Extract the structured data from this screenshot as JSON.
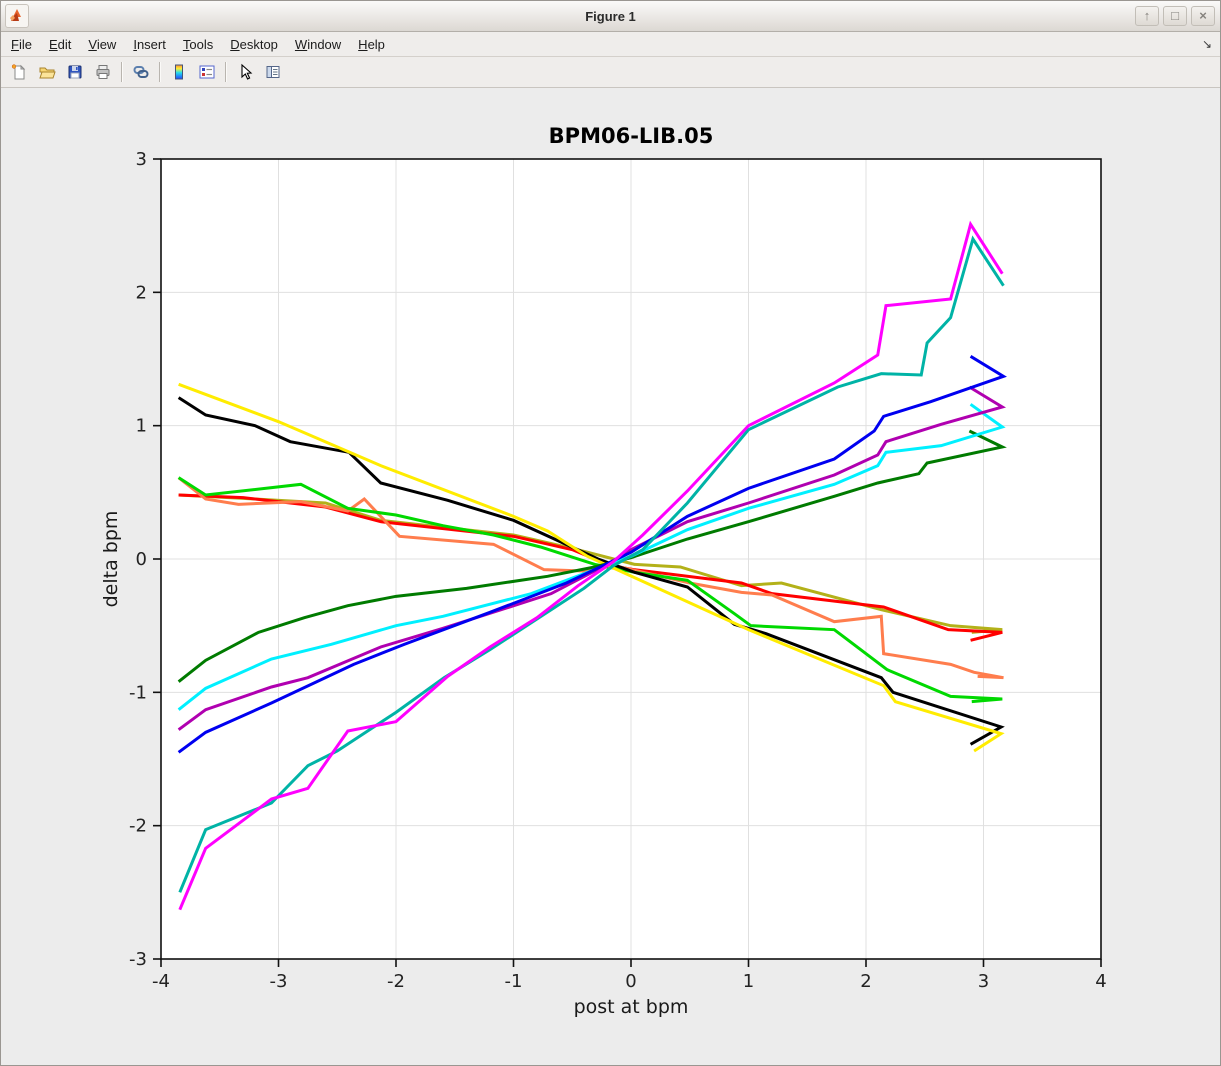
{
  "window": {
    "title": "Figure 1",
    "buttons": {
      "minimize": "↑",
      "maximize": "□",
      "close": "×"
    }
  },
  "menu": {
    "items": [
      "File",
      "Edit",
      "View",
      "Insert",
      "Tools",
      "Desktop",
      "Window",
      "Help"
    ],
    "dock_glyph": "↘"
  },
  "toolbar": {
    "buttons": [
      "new-figure",
      "open-file",
      "save-figure",
      "print-figure",
      "link-plot",
      "insert-colorbar",
      "insert-legend",
      "edit-plot",
      "plot-browser"
    ]
  },
  "chart_data": {
    "type": "line",
    "title": "BPM06-LIB.05",
    "xlabel": "post at bpm",
    "ylabel": "delta bpm",
    "xlim": [
      -4,
      4
    ],
    "ylim": [
      -3,
      3
    ],
    "xticks": [
      -4,
      -3,
      -2,
      -1,
      0,
      1,
      2,
      3,
      4
    ],
    "yticks": [
      -3,
      -2,
      -1,
      0,
      1,
      2,
      3
    ],
    "grid": true,
    "legend": "none",
    "colors": {
      "axis": "#111111",
      "grid": "#E0E0E0",
      "plot_bg": "#FFFFFF",
      "figure_bg": "#ECECEC"
    },
    "series": [
      {
        "name": "olive",
        "color": "#B3B119",
        "points": [
          [
            -3.85,
            0.48
          ],
          [
            -3.2,
            0.45
          ],
          [
            -2.6,
            0.42
          ],
          [
            -2.13,
            0.29
          ],
          [
            -1.0,
            0.18
          ],
          [
            -0.5,
            0.08
          ],
          [
            0.03,
            -0.04
          ],
          [
            0.42,
            -0.06
          ],
          [
            0.94,
            -0.2
          ],
          [
            1.28,
            -0.18
          ],
          [
            2.13,
            -0.38
          ],
          [
            2.72,
            -0.5
          ],
          [
            3.16,
            -0.53
          ],
          [
            2.9,
            -0.55
          ]
        ]
      },
      {
        "name": "red",
        "color": "#FF0000",
        "points": [
          [
            -3.85,
            0.48
          ],
          [
            -3.3,
            0.46
          ],
          [
            -2.6,
            0.39
          ],
          [
            -2.13,
            0.28
          ],
          [
            -1.0,
            0.17
          ],
          [
            -0.5,
            0.07
          ],
          [
            -0.17,
            -0.05
          ],
          [
            0.03,
            -0.08
          ],
          [
            0.94,
            -0.18
          ],
          [
            1.2,
            -0.26
          ],
          [
            2.15,
            -0.36
          ],
          [
            2.7,
            -0.53
          ],
          [
            3.16,
            -0.55
          ],
          [
            2.89,
            -0.61
          ]
        ]
      },
      {
        "name": "coral",
        "color": "#FF7D4D",
        "points": [
          [
            -3.85,
            0.61
          ],
          [
            -3.62,
            0.45
          ],
          [
            -3.34,
            0.41
          ],
          [
            -2.81,
            0.43
          ],
          [
            -2.41,
            0.36
          ],
          [
            -2.27,
            0.45
          ],
          [
            -1.97,
            0.17
          ],
          [
            -1.17,
            0.11
          ],
          [
            -0.74,
            -0.08
          ],
          [
            -0.4,
            -0.09
          ],
          [
            -0.14,
            -0.05
          ],
          [
            0.5,
            -0.18
          ],
          [
            0.94,
            -0.25
          ],
          [
            1.2,
            -0.27
          ],
          [
            1.73,
            -0.47
          ],
          [
            2.13,
            -0.43
          ],
          [
            2.15,
            -0.71
          ],
          [
            2.72,
            -0.79
          ],
          [
            2.92,
            -0.85
          ],
          [
            3.17,
            -0.89
          ],
          [
            2.95,
            -0.88
          ]
        ]
      },
      {
        "name": "green",
        "color": "#00D900",
        "points": [
          [
            -3.85,
            0.61
          ],
          [
            -3.62,
            0.48
          ],
          [
            -2.81,
            0.56
          ],
          [
            -2.41,
            0.38
          ],
          [
            -2.0,
            0.33
          ],
          [
            -1.6,
            0.25
          ],
          [
            -1.17,
            0.18
          ],
          [
            -0.77,
            0.09
          ],
          [
            -0.31,
            -0.04
          ],
          [
            0.03,
            -0.1
          ],
          [
            0.48,
            -0.16
          ],
          [
            0.88,
            -0.41
          ],
          [
            1.02,
            -0.5
          ],
          [
            1.73,
            -0.53
          ],
          [
            2.18,
            -0.83
          ],
          [
            2.72,
            -1.03
          ],
          [
            3.16,
            -1.05
          ],
          [
            2.9,
            -1.07
          ]
        ]
      },
      {
        "name": "black",
        "color": "#000000",
        "points": [
          [
            -3.85,
            1.21
          ],
          [
            -3.62,
            1.08
          ],
          [
            -3.2,
            1.0
          ],
          [
            -2.9,
            0.88
          ],
          [
            -2.4,
            0.8
          ],
          [
            -2.13,
            0.57
          ],
          [
            -1.56,
            0.44
          ],
          [
            -1.0,
            0.29
          ],
          [
            -0.28,
            0.0
          ],
          [
            0.03,
            -0.1
          ],
          [
            0.48,
            -0.21
          ],
          [
            0.88,
            -0.49
          ],
          [
            1.15,
            -0.56
          ],
          [
            2.13,
            -0.89
          ],
          [
            2.23,
            -1.0
          ],
          [
            3.15,
            -1.26
          ],
          [
            2.89,
            -1.39
          ]
        ]
      },
      {
        "name": "yellow",
        "color": "#FFEC00",
        "points": [
          [
            -3.85,
            1.31
          ],
          [
            -3.0,
            1.03
          ],
          [
            -2.13,
            0.7
          ],
          [
            -1.0,
            0.32
          ],
          [
            -0.71,
            0.21
          ],
          [
            -0.37,
            0.02
          ],
          [
            0.03,
            -0.14
          ],
          [
            1.0,
            -0.53
          ],
          [
            2.15,
            -0.95
          ],
          [
            2.25,
            -1.07
          ],
          [
            3.15,
            -1.31
          ],
          [
            2.92,
            -1.44
          ]
        ]
      },
      {
        "name": "dark-green",
        "color": "#007B00",
        "points": [
          [
            -3.85,
            -0.92
          ],
          [
            -3.62,
            -0.76
          ],
          [
            -3.17,
            -0.55
          ],
          [
            -2.78,
            -0.44
          ],
          [
            -2.41,
            -0.35
          ],
          [
            -2.0,
            -0.28
          ],
          [
            -1.4,
            -0.22
          ],
          [
            -0.71,
            -0.13
          ],
          [
            -0.31,
            -0.06
          ],
          [
            0.0,
            0.01
          ],
          [
            0.48,
            0.15
          ],
          [
            1.0,
            0.28
          ],
          [
            1.73,
            0.47
          ],
          [
            2.1,
            0.57
          ],
          [
            2.45,
            0.64
          ],
          [
            2.52,
            0.72
          ],
          [
            3.16,
            0.84
          ],
          [
            2.88,
            0.96
          ]
        ]
      },
      {
        "name": "cyan",
        "color": "#00F0FF",
        "points": [
          [
            -3.85,
            -1.13
          ],
          [
            -3.62,
            -0.97
          ],
          [
            -3.06,
            -0.75
          ],
          [
            -2.55,
            -0.64
          ],
          [
            -2.0,
            -0.5
          ],
          [
            -1.6,
            -0.43
          ],
          [
            -0.85,
            -0.26
          ],
          [
            -0.31,
            -0.08
          ],
          [
            0.0,
            0.02
          ],
          [
            0.48,
            0.22
          ],
          [
            1.0,
            0.38
          ],
          [
            1.73,
            0.56
          ],
          [
            2.1,
            0.7
          ],
          [
            2.17,
            0.8
          ],
          [
            2.64,
            0.85
          ],
          [
            3.16,
            0.99
          ],
          [
            2.89,
            1.16
          ]
        ]
      },
      {
        "name": "violet",
        "color": "#B000B0",
        "points": [
          [
            -3.85,
            -1.28
          ],
          [
            -3.62,
            -1.13
          ],
          [
            -3.06,
            -0.96
          ],
          [
            -2.75,
            -0.89
          ],
          [
            -2.13,
            -0.66
          ],
          [
            -1.6,
            -0.52
          ],
          [
            -0.68,
            -0.26
          ],
          [
            -0.2,
            -0.04
          ],
          [
            0.0,
            0.07
          ],
          [
            0.48,
            0.28
          ],
          [
            1.0,
            0.42
          ],
          [
            1.73,
            0.63
          ],
          [
            2.1,
            0.78
          ],
          [
            2.17,
            0.88
          ],
          [
            2.64,
            1.01
          ],
          [
            3.16,
            1.14
          ],
          [
            2.88,
            1.29
          ]
        ]
      },
      {
        "name": "blue",
        "color": "#0000F0",
        "points": [
          [
            -3.85,
            -1.45
          ],
          [
            -3.62,
            -1.3
          ],
          [
            -3.06,
            -1.08
          ],
          [
            -2.36,
            -0.79
          ],
          [
            -1.93,
            -0.64
          ],
          [
            -1.2,
            -0.4
          ],
          [
            -0.55,
            -0.18
          ],
          [
            0.0,
            0.05
          ],
          [
            0.48,
            0.32
          ],
          [
            1.0,
            0.53
          ],
          [
            1.73,
            0.75
          ],
          [
            2.07,
            0.96
          ],
          [
            2.15,
            1.07
          ],
          [
            2.55,
            1.18
          ],
          [
            3.17,
            1.37
          ],
          [
            2.89,
            1.52
          ]
        ]
      },
      {
        "name": "teal",
        "color": "#00B3A6",
        "points": [
          [
            -3.84,
            -2.5
          ],
          [
            -3.62,
            -2.03
          ],
          [
            -3.06,
            -1.83
          ],
          [
            -2.75,
            -1.55
          ],
          [
            -2.5,
            -1.44
          ],
          [
            -2.0,
            -1.15
          ],
          [
            -1.59,
            -0.89
          ],
          [
            -1.2,
            -0.68
          ],
          [
            -0.8,
            -0.45
          ],
          [
            -0.4,
            -0.22
          ],
          [
            -0.15,
            -0.05
          ],
          [
            0.1,
            0.07
          ],
          [
            0.48,
            0.42
          ],
          [
            1.0,
            0.97
          ],
          [
            1.76,
            1.29
          ],
          [
            2.13,
            1.39
          ],
          [
            2.47,
            1.38
          ],
          [
            2.52,
            1.62
          ],
          [
            2.72,
            1.81
          ],
          [
            2.91,
            2.4
          ],
          [
            3.17,
            2.05
          ]
        ]
      },
      {
        "name": "magenta",
        "color": "#FF00FF",
        "points": [
          [
            -3.84,
            -2.63
          ],
          [
            -3.62,
            -2.17
          ],
          [
            -3.06,
            -1.8
          ],
          [
            -2.75,
            -1.72
          ],
          [
            -2.41,
            -1.29
          ],
          [
            -2.0,
            -1.22
          ],
          [
            -1.56,
            -0.88
          ],
          [
            -1.2,
            -0.66
          ],
          [
            -0.8,
            -0.44
          ],
          [
            -0.45,
            -0.2
          ],
          [
            -0.15,
            -0.02
          ],
          [
            0.1,
            0.18
          ],
          [
            0.48,
            0.51
          ],
          [
            1.0,
            1.0
          ],
          [
            1.73,
            1.32
          ],
          [
            2.1,
            1.53
          ],
          [
            2.17,
            1.9
          ],
          [
            2.72,
            1.95
          ],
          [
            2.89,
            2.51
          ],
          [
            3.16,
            2.14
          ]
        ]
      }
    ]
  }
}
